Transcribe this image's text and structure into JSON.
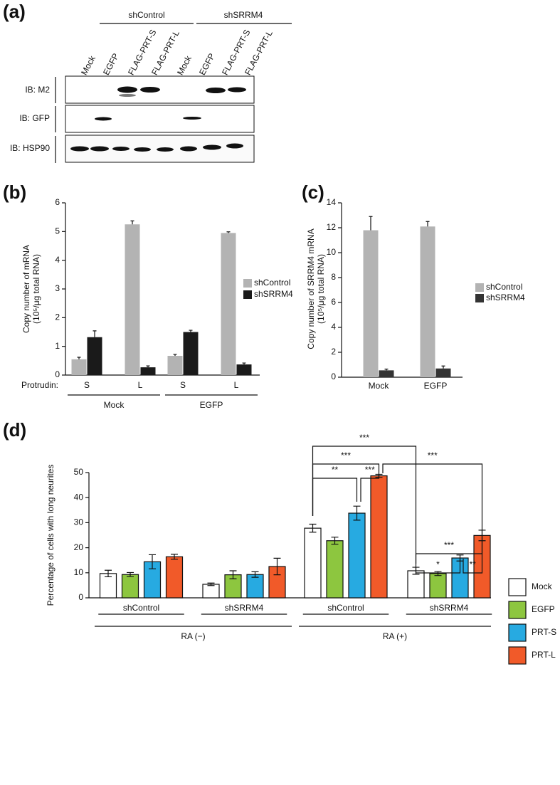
{
  "blot": {
    "panel_label": "(a)",
    "groups": [
      "shControl",
      "shSRRM4"
    ],
    "lanes": [
      "Mock",
      "EGFP",
      "FLAG-PRT-S",
      "FLAG-PRT-L",
      "Mock",
      "EGFP",
      "FLAG-PRT-S",
      "FLAG-PRT-L"
    ],
    "rows": [
      "IB: M2",
      "IB: GFP",
      "IB: HSP90"
    ]
  },
  "chart_data": [
    {
      "type": "bar",
      "panel_label": "(b)",
      "y_label": [
        "Copy number of mRNA",
        "(10⁵/μg total RNA)"
      ],
      "x_prefix": "Protrudin:",
      "categories": [
        "S",
        "L",
        "S",
        "L"
      ],
      "groups": [
        "Mock",
        "EGFP"
      ],
      "ylim": [
        0,
        6
      ],
      "yticks": [
        0,
        1,
        2,
        3,
        4,
        5,
        6
      ],
      "series": [
        {
          "name": "shControl",
          "color": "#b3b3b3",
          "values": [
            0.55,
            5.25,
            0.67,
            4.95
          ],
          "errors": [
            0.07,
            0.12,
            0.05,
            0.04
          ]
        },
        {
          "name": "shSRRM4",
          "color": "#1a1a1a",
          "values": [
            1.32,
            0.27,
            1.5,
            0.37
          ],
          "errors": [
            0.22,
            0.05,
            0.06,
            0.05
          ]
        }
      ]
    },
    {
      "type": "bar",
      "panel_label": "(c)",
      "y_label": [
        "Copy number of SRRM4 mRNA",
        "(10⁵/μg total RNA)"
      ],
      "categories": [
        "Mock",
        "EGFP"
      ],
      "ylim": [
        0,
        14
      ],
      "yticks": [
        0,
        2,
        4,
        6,
        8,
        10,
        12,
        14
      ],
      "series": [
        {
          "name": "shControl",
          "color": "#b3b3b3",
          "values": [
            11.8,
            12.1
          ],
          "errors": [
            1.1,
            0.4
          ]
        },
        {
          "name": "shSRRM4",
          "color": "#333333",
          "values": [
            0.55,
            0.7
          ],
          "errors": [
            0.1,
            0.2
          ]
        }
      ]
    },
    {
      "type": "bar",
      "panel_label": "(d)",
      "y_label": [
        "Percentage of cells with long neurites"
      ],
      "categories": [
        "shControl",
        "shSRRM4",
        "shControl",
        "shSRRM4"
      ],
      "groups": [
        "RA (−)",
        "RA (+)"
      ],
      "ylim": [
        0,
        50
      ],
      "yticks": [
        0,
        10,
        20,
        30,
        40,
        50
      ],
      "series": [
        {
          "name": "Mock",
          "color": "#ffffff",
          "values": [
            9.7,
            5.4,
            27.8,
            10.8
          ],
          "errors": [
            1.3,
            0.5,
            1.6,
            1.4
          ]
        },
        {
          "name": "EGFP",
          "color": "#8dc63f",
          "values": [
            9.3,
            9.2,
            22.8,
            9.7
          ],
          "errors": [
            0.8,
            1.6,
            1.4,
            0.8
          ]
        },
        {
          "name": "PRT-S",
          "color": "#27aae1",
          "values": [
            14.4,
            9.3,
            33.8,
            15.9
          ],
          "errors": [
            2.8,
            1.1,
            2.8,
            1.2
          ]
        },
        {
          "name": "PRT-L",
          "color": "#f15a29",
          "values": [
            16.4,
            12.5,
            48.7,
            24.9
          ],
          "errors": [
            1.0,
            3.3,
            0.6,
            2.1
          ]
        }
      ],
      "annotations": [
        "***",
        "***",
        "***",
        "**",
        "***",
        "***",
        "*",
        "**"
      ]
    }
  ]
}
